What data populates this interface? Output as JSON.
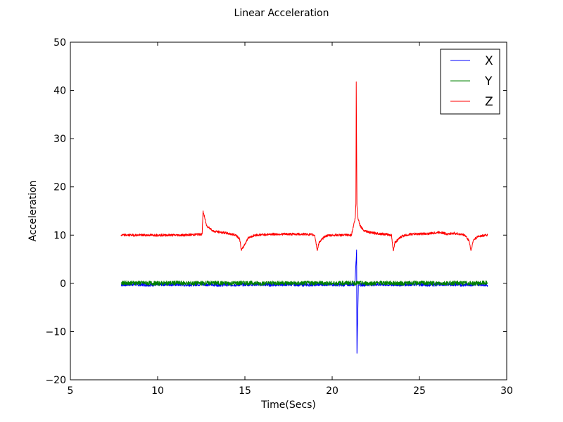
{
  "chart_data": {
    "type": "line",
    "title": "Linear Acceleration",
    "xlabel": "Time(Secs)",
    "ylabel": "Acceleration",
    "xlim": [
      5,
      30
    ],
    "ylim": [
      -20,
      50
    ],
    "xticks": [
      5,
      10,
      15,
      20,
      25,
      30
    ],
    "yticks": [
      -20,
      -10,
      0,
      10,
      20,
      30,
      40,
      50
    ],
    "grid": false,
    "legend_position": "top-right",
    "series": [
      {
        "name": "X",
        "color": "#0000ff",
        "noise": 0.35,
        "x": [
          7.9,
          8.5,
          9.5,
          10.5,
          11.5,
          12.5,
          13.5,
          14.5,
          15.5,
          16.5,
          17.5,
          18.5,
          19.5,
          20.5,
          21.3,
          21.4,
          21.42,
          21.5,
          22.5,
          23.5,
          24.5,
          25.5,
          26.5,
          27.5,
          28.5,
          28.9
        ],
        "y": [
          -0.3,
          -0.2,
          -0.3,
          -0.2,
          -0.3,
          -0.2,
          -0.3,
          -0.3,
          -0.2,
          -0.3,
          -0.2,
          -0.3,
          -0.2,
          -0.3,
          -0.2,
          6.8,
          -14.5,
          -0.3,
          -0.2,
          -0.3,
          -0.2,
          -0.3,
          -0.2,
          -0.3,
          -0.2,
          -0.3
        ]
      },
      {
        "name": "Y",
        "color": "#008000",
        "noise": 0.45,
        "x": [
          7.9,
          9,
          10,
          11,
          12,
          13,
          14,
          15,
          16,
          17,
          18,
          19,
          20,
          21,
          22,
          23,
          24,
          25,
          26,
          27,
          28,
          28.9
        ],
        "y": [
          0.1,
          0.1,
          0,
          0.1,
          0,
          0.1,
          0,
          0.1,
          0,
          0.1,
          0,
          0.1,
          0,
          0.1,
          0,
          0.1,
          0,
          0.1,
          0,
          0.1,
          0,
          0.1
        ]
      },
      {
        "name": "Z",
        "color": "#ff0000",
        "noise": 0.25,
        "x": [
          7.9,
          8.5,
          9.5,
          10.5,
          11.5,
          12.55,
          12.6,
          12.8,
          13.2,
          13.8,
          14.5,
          14.7,
          14.8,
          15.2,
          15.6,
          16.5,
          17.5,
          18.5,
          19.0,
          19.15,
          19.25,
          19.6,
          20.0,
          20.5,
          21.1,
          21.32,
          21.36,
          21.38,
          21.42,
          21.48,
          21.6,
          21.8,
          22.2,
          23.0,
          23.4,
          23.5,
          23.6,
          24.0,
          24.5,
          25.5,
          26.2,
          26.6,
          27.0,
          27.6,
          27.85,
          27.95,
          28.1,
          28.4,
          28.9
        ],
        "y": [
          10.0,
          10.0,
          10.0,
          10.0,
          10.0,
          10.2,
          15.0,
          12.0,
          10.8,
          10.5,
          10.0,
          9.2,
          6.8,
          9.5,
          10.0,
          10.2,
          10.2,
          10.2,
          10.0,
          6.8,
          8.5,
          9.8,
          10.0,
          10.0,
          10.0,
          13.5,
          16.5,
          41.8,
          16.0,
          13.5,
          12.0,
          11.0,
          10.5,
          10.2,
          10.0,
          6.8,
          8.5,
          9.8,
          10.2,
          10.3,
          10.6,
          10.2,
          10.4,
          10.0,
          8.8,
          6.8,
          9.0,
          9.8,
          10.0
        ]
      }
    ]
  }
}
